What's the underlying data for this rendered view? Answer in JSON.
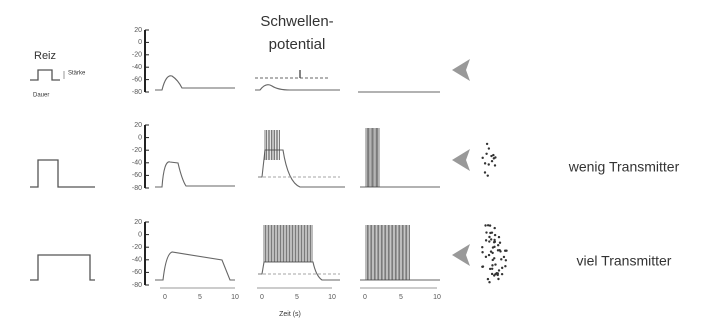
{
  "stimulus": {
    "label": "Reiz",
    "strength": "Stärke",
    "duration": "Dauer"
  },
  "threshold": {
    "line1": "Schwellen-",
    "line2": "potential"
  },
  "row_labels": [
    "wenig Transmitter",
    "viel Transmitter"
  ],
  "y_axis_ticks": [
    "20",
    "0",
    "-20",
    "-40",
    "-60",
    "-80"
  ],
  "x_axis_ticks": [
    "0",
    "5",
    "10"
  ],
  "x_axis_title": "Zeit (s)"
}
